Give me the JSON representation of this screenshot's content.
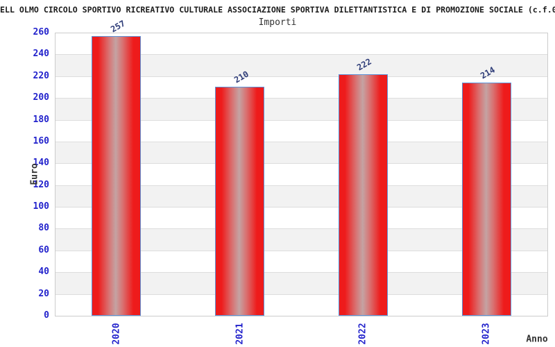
{
  "chart_data": {
    "type": "bar",
    "title": "ELL OLMO CIRCOLO SPORTIVO RICREATIVO CULTURALE ASSOCIAZIONE SPORTIVA DILETTANTISTICA E DI PROMOZIONE SOCIALE (c.f.0",
    "subtitle": "Importi",
    "categories": [
      "2020",
      "2021",
      "2022",
      "2023"
    ],
    "values": [
      257,
      210,
      222,
      214
    ],
    "xlabel": "Anno",
    "ylabel": "Euro",
    "ylim": [
      0,
      260
    ],
    "ytick_step": 20,
    "ytick_labels": [
      "0",
      "20",
      "40",
      "60",
      "80",
      "100",
      "120",
      "140",
      "160",
      "180",
      "200",
      "220",
      "240",
      "260"
    ],
    "legend": "none",
    "grid": "horizontal-gridlines-with-alternating-bands",
    "bar_value_labels_rotation_deg": -30,
    "x_tick_rotation_deg": -90
  },
  "colors": {
    "background": "#ffffff",
    "plot_border": "#cccccc",
    "band_gray": "#f2f2f2",
    "gridline": "#dddddd",
    "bar_red": "#ee1b1b",
    "bar_center_highlight": "#c4a3a3",
    "bar_border_blue": "#5b92d8",
    "tick_label_blue": "#2323cc",
    "value_label_navy": "#2e3c78",
    "title_black": "#1c1c1c",
    "axis_title_gray": "#333333"
  }
}
